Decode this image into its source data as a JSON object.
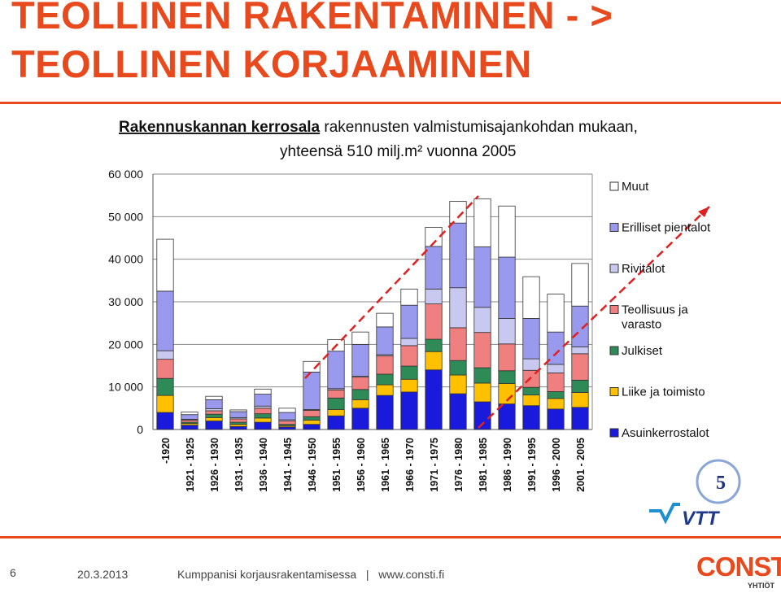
{
  "slide": {
    "title_line1": "TEOLLINEN RAKENTAMINEN - >",
    "title_line2": "TEOLLINEN KORJAAMINEN",
    "page_number": "6",
    "date": "20.3.2013",
    "tagline": "Kumppanisi korjausrakentamisessa   |   www.consti.fi",
    "logo_text": "CONSTI",
    "logo_subtext": "YHTIÖT",
    "badge_number": "5",
    "vtt_text": "VTT",
    "accent_color": "#e8491d"
  },
  "chart_data": {
    "type": "bar",
    "stacked": true,
    "title_bold": "Rakennuskannan kerrosala",
    "title_rest": " rakennusten valmistumisajankohdan mukaan,",
    "subtitle": "yhteensä 510 milj.m² vuonna 2005",
    "ylim": [
      0,
      60000
    ],
    "yticks": [
      "0",
      "10 000",
      "20 000",
      "30 000",
      "40 000",
      "50 000",
      "60 000"
    ],
    "ytick_values": [
      0,
      10000,
      20000,
      30000,
      40000,
      50000,
      60000
    ],
    "grid": true,
    "legend_position": "right",
    "categories": [
      "-1920",
      "1921 - 1925",
      "1926 - 1930",
      "1931 - 1935",
      "1936 - 1940",
      "1941 - 1945",
      "1946 - 1950",
      "1951 - 1955",
      "1956 - 1960",
      "1961 - 1965",
      "1966 - 1970",
      "1971 - 1975",
      "1976 - 1980",
      "1981 - 1985",
      "1986 - 1990",
      "1991 - 1995",
      "1996 - 2000",
      "2001 - 2005"
    ],
    "series": [
      {
        "name": "Asuinkerrostalot",
        "color": "#1a1adc",
        "values": [
          4000,
          1000,
          2000,
          700,
          1700,
          600,
          1200,
          3200,
          5000,
          8000,
          8800,
          14000,
          8400,
          6500,
          6000,
          5600,
          4800,
          5200
        ]
      },
      {
        "name": "Liike ja toimisto",
        "color": "#ffc000",
        "values": [
          4000,
          400,
          800,
          500,
          1000,
          300,
          1000,
          1500,
          2000,
          2500,
          3000,
          4300,
          4400,
          4400,
          4800,
          2500,
          2500,
          3500
        ]
      },
      {
        "name": "Julkiset",
        "color": "#2e8b57",
        "values": [
          4000,
          300,
          800,
          500,
          1000,
          300,
          800,
          2700,
          2400,
          2500,
          3100,
          2900,
          3400,
          3600,
          3000,
          1800,
          1600,
          2900
        ]
      },
      {
        "name": "Teollisuus ja varasto",
        "color": "#f08080",
        "values": [
          4500,
          500,
          800,
          800,
          1300,
          800,
          1500,
          1900,
          2900,
          4300,
          4800,
          8300,
          7700,
          8300,
          6300,
          4000,
          4400,
          6200
        ]
      },
      {
        "name": "Rivitalot",
        "color": "#c8c8f0",
        "values": [
          2000,
          200,
          500,
          300,
          500,
          300,
          200,
          300,
          200,
          300,
          1700,
          3500,
          9400,
          5900,
          6000,
          2700,
          2000,
          1600
        ]
      },
      {
        "name": "Erilliset pientalot",
        "color": "#9999ee",
        "values": [
          14000,
          1100,
          2100,
          1400,
          2800,
          1700,
          8800,
          8800,
          7500,
          6500,
          7800,
          10000,
          15200,
          14200,
          14400,
          9500,
          7600,
          9600
        ]
      },
      {
        "name": "Muut",
        "color": "#ffffff",
        "values": [
          12200,
          600,
          800,
          400,
          1200,
          1000,
          2500,
          2700,
          2900,
          3200,
          3800,
          4500,
          5100,
          11300,
          12000,
          9800,
          8900,
          10000
        ]
      }
    ]
  }
}
